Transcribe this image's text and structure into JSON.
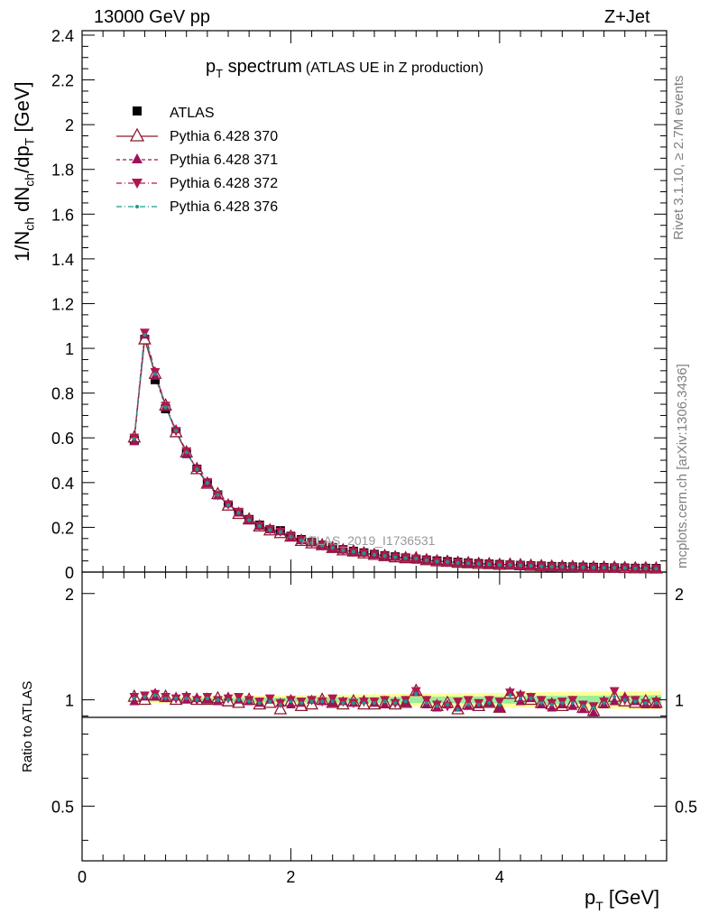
{
  "header": {
    "left": "13000 GeV pp",
    "right": "Z+Jet"
  },
  "side_labels": {
    "rivet": "Rivet 3.1.10, ≥ 2.7M events",
    "mcplots": "mcplots.cern.ch [arXiv:1306.3436]"
  },
  "plot_title": {
    "main": "p",
    "sub": "T",
    "rest": " spectrum",
    "small": "(ATLAS UE in Z production)"
  },
  "watermark": "ATLAS_2019_I1736531",
  "colors": {
    "data": "#000000",
    "p370": "#8b1a2b",
    "p371": "#a0105a",
    "p372": "#b01850",
    "p376": "#1a9a8a",
    "band_yellow": "#ffff99",
    "band_green": "#99ee99"
  },
  "chart_data": {
    "type": "scatter",
    "ylabel_main": "1/N_ch dN_ch/dp_T [GeV]",
    "ylabel_ratio": "Ratio to ATLAS",
    "xlabel": "p_T [GeV]",
    "xlim": [
      0,
      5.6
    ],
    "ylim_main": [
      0,
      2.42
    ],
    "ylim_ratio": [
      0.35,
      2.3
    ],
    "x_ticks": [
      "0",
      "2",
      "4"
    ],
    "y_ticks_main": [
      "0",
      "0.2",
      "0.4",
      "0.6",
      "0.8",
      "1",
      "1.2",
      "1.4",
      "1.6",
      "1.8",
      "2",
      "2.2",
      "2.4"
    ],
    "y_ticks_ratio": [
      "0.5",
      "1",
      "2"
    ],
    "legend": [
      "ATLAS",
      "Pythia 6.428 370",
      "Pythia 6.428 371",
      "Pythia 6.428 372",
      "Pythia 6.428 376"
    ],
    "x": [
      0.5,
      0.6,
      0.7,
      0.8,
      0.9,
      1.0,
      1.1,
      1.2,
      1.3,
      1.4,
      1.5,
      1.6,
      1.7,
      1.8,
      1.9,
      2.0,
      2.1,
      2.2,
      2.3,
      2.4,
      2.5,
      2.6,
      2.7,
      2.8,
      2.9,
      3.0,
      3.1,
      3.2,
      3.3,
      3.4,
      3.5,
      3.6,
      3.7,
      3.8,
      3.9,
      4.0,
      4.1,
      4.2,
      4.3,
      4.4,
      4.5,
      4.6,
      4.7,
      4.8,
      4.9,
      5.0,
      5.1,
      5.2,
      5.3,
      5.4,
      5.5
    ],
    "atlas": [
      0.59,
      1.04,
      0.86,
      0.73,
      0.625,
      0.53,
      0.46,
      0.395,
      0.345,
      0.3,
      0.265,
      0.235,
      0.21,
      0.19,
      0.185,
      0.16,
      0.145,
      0.132,
      0.12,
      0.11,
      0.1,
      0.093,
      0.086,
      0.079,
      0.073,
      0.068,
      0.063,
      0.058,
      0.054,
      0.05,
      0.047,
      0.044,
      0.041,
      0.038,
      0.036,
      0.034,
      0.032,
      0.03,
      0.028,
      0.027,
      0.025,
      0.024,
      0.023,
      0.022,
      0.021,
      0.02,
      0.019,
      0.018,
      0.017,
      0.017,
      0.016
    ],
    "series": [
      {
        "name": "Pythia 6.428 370",
        "marker": "triangle-up-open",
        "line": "solid",
        "ratio": [
          1.02,
          1.0,
          1.03,
          1.02,
          1.0,
          1.01,
          1.0,
          1.0,
          1.01,
          0.99,
          0.98,
          1.0,
          0.97,
          0.98,
          0.94,
          0.99,
          0.96,
          0.97,
          1.0,
          0.98,
          0.97,
          0.99,
          0.97,
          0.97,
          0.98,
          0.97,
          0.98,
          1.06,
          0.98,
          0.96,
          0.98,
          0.94,
          0.97,
          0.96,
          0.98,
          0.95,
          1.04,
          1.02,
          1.0,
          0.98,
          0.97,
          0.96,
          0.98,
          0.95,
          0.93,
          0.98,
          1.02,
          0.99,
          0.98,
          0.99,
          0.98
        ]
      },
      {
        "name": "Pythia 6.428 371",
        "marker": "triangle-up",
        "line": "dashed",
        "ratio": [
          0.99,
          1.02,
          1.02,
          1.01,
          1.02,
          1.0,
          1.01,
          1.0,
          0.99,
          1.02,
          1.0,
          0.99,
          0.98,
          1.0,
          0.98,
          0.97,
          0.98,
          1.0,
          0.99,
          0.98,
          0.99,
          0.98,
          1.0,
          0.98,
          0.97,
          0.99,
          0.98,
          1.05,
          0.97,
          0.95,
          0.97,
          0.95,
          0.96,
          0.97,
          0.98,
          0.95,
          1.05,
          0.99,
          1.01,
          0.97,
          0.95,
          0.97,
          0.96,
          0.94,
          0.92,
          0.97,
          0.99,
          1.02,
          0.99,
          0.97,
          0.97
        ]
      },
      {
        "name": "Pythia 6.428 372",
        "marker": "triangle-down",
        "line": "dash-dot",
        "ratio": [
          1.02,
          1.03,
          1.04,
          1.02,
          1.01,
          1.02,
          1.0,
          1.02,
          1.0,
          1.01,
          1.02,
          1.0,
          0.99,
          1.01,
          0.98,
          1.0,
          0.99,
          1.0,
          0.99,
          1.01,
          0.99,
          0.98,
          0.99,
          0.99,
          1.0,
          0.98,
          1.0,
          1.06,
          1.0,
          0.97,
          0.96,
          0.99,
          1.0,
          0.98,
          1.0,
          0.99,
          1.05,
          1.03,
          1.02,
          1.0,
          0.98,
          0.99,
          1.0,
          0.97,
          0.96,
          0.99,
          1.06,
          1.0,
          1.0,
          0.98,
          0.99
        ]
      },
      {
        "name": "Pythia 6.428 376",
        "marker": "dot",
        "line": "dash-dot",
        "ratio": [
          1.01,
          1.02,
          1.03,
          1.01,
          1.01,
          1.01,
          1.0,
          1.01,
          1.0,
          1.0,
          1.0,
          0.99,
          0.98,
          0.99,
          0.97,
          0.99,
          0.98,
          0.99,
          0.99,
          0.99,
          0.98,
          0.98,
          0.98,
          0.98,
          0.99,
          0.98,
          0.99,
          1.04,
          0.98,
          0.96,
          0.97,
          0.94,
          0.97,
          0.97,
          0.98,
          0.97,
          1.03,
          1.01,
          1.01,
          0.98,
          0.97,
          0.98,
          0.98,
          0.96,
          0.95,
          0.98,
          1.02,
          1.0,
          0.99,
          0.98,
          0.98
        ]
      }
    ]
  }
}
